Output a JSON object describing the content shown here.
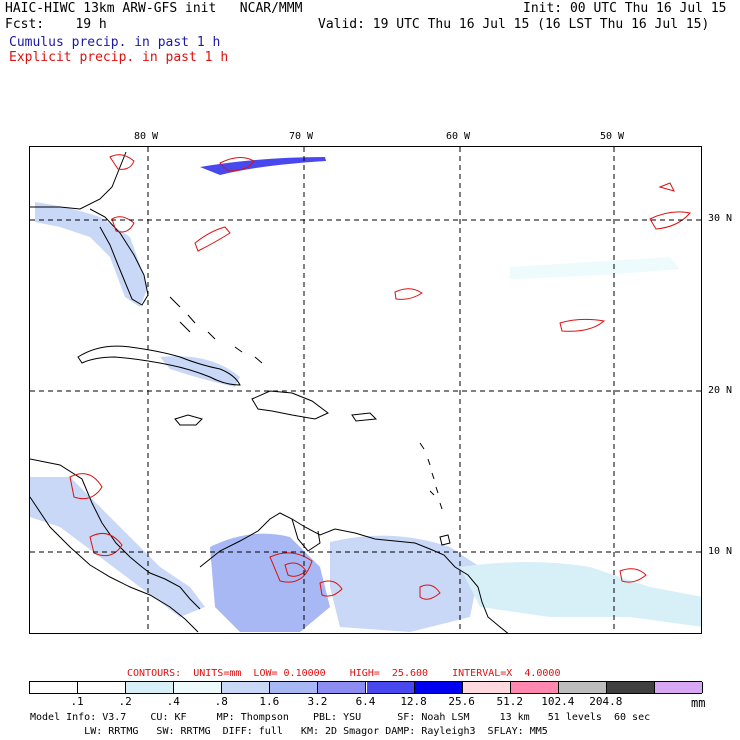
{
  "header": {
    "line1_left": "HAIC-HIWC 13km ARW-GFS init   NCAR/MMM",
    "line1_right": "Init: 00 UTC Thu 16 Jul 15",
    "line2_left": "Fcst:    19 h",
    "line2_right": "Valid: 19 UTC Thu 16 Jul 15 (16 LST Thu 16 Jul 15)",
    "legend_cumulus": "Cumulus precip. in past 1 h",
    "legend_explicit": "Explicit precip. in past 1 h"
  },
  "map": {
    "lon_labels": [
      "80 W",
      "70 W",
      "60 W",
      "50 W"
    ],
    "lat_labels": [
      "30 N",
      "20 N",
      "10 N"
    ],
    "colors": {
      "coast": "#000000",
      "explicit_contour": "#dd1111",
      "grid": "#000000"
    }
  },
  "contour_info": "CONTOURS:  UNITS=mm  LOW= 0.10000    HIGH=  25.600    INTERVAL=X  4.0000",
  "colorbar": {
    "labels": [
      ".1",
      ".2",
      ".4",
      ".8",
      "1.6",
      "3.2",
      "6.4",
      "12.8",
      "25.6",
      "51.2",
      "102.4",
      "204.8"
    ],
    "unit": "mm",
    "colors": [
      "#ffffff",
      "#ffffff",
      "#d7f0f7",
      "#eefbfd",
      "#c8d8f6",
      "#a7b8f4",
      "#8c8cf2",
      "#4848ee",
      "#0000f0",
      "#ffd9e0",
      "#ff88b0",
      "#bdbdbd",
      "#404040",
      "#d9a8f4"
    ]
  },
  "footer": {
    "line1": "Model Info: V3.7    CU: KF     MP: Thompson    PBL: YSU      SF: Noah LSM     13 km   51 levels  60 sec",
    "line2": "         LW: RRTMG   SW: RRTMG  DIFF: full   KM: 2D Smagor DAMP: Rayleigh3  SFLAY: MM5"
  }
}
